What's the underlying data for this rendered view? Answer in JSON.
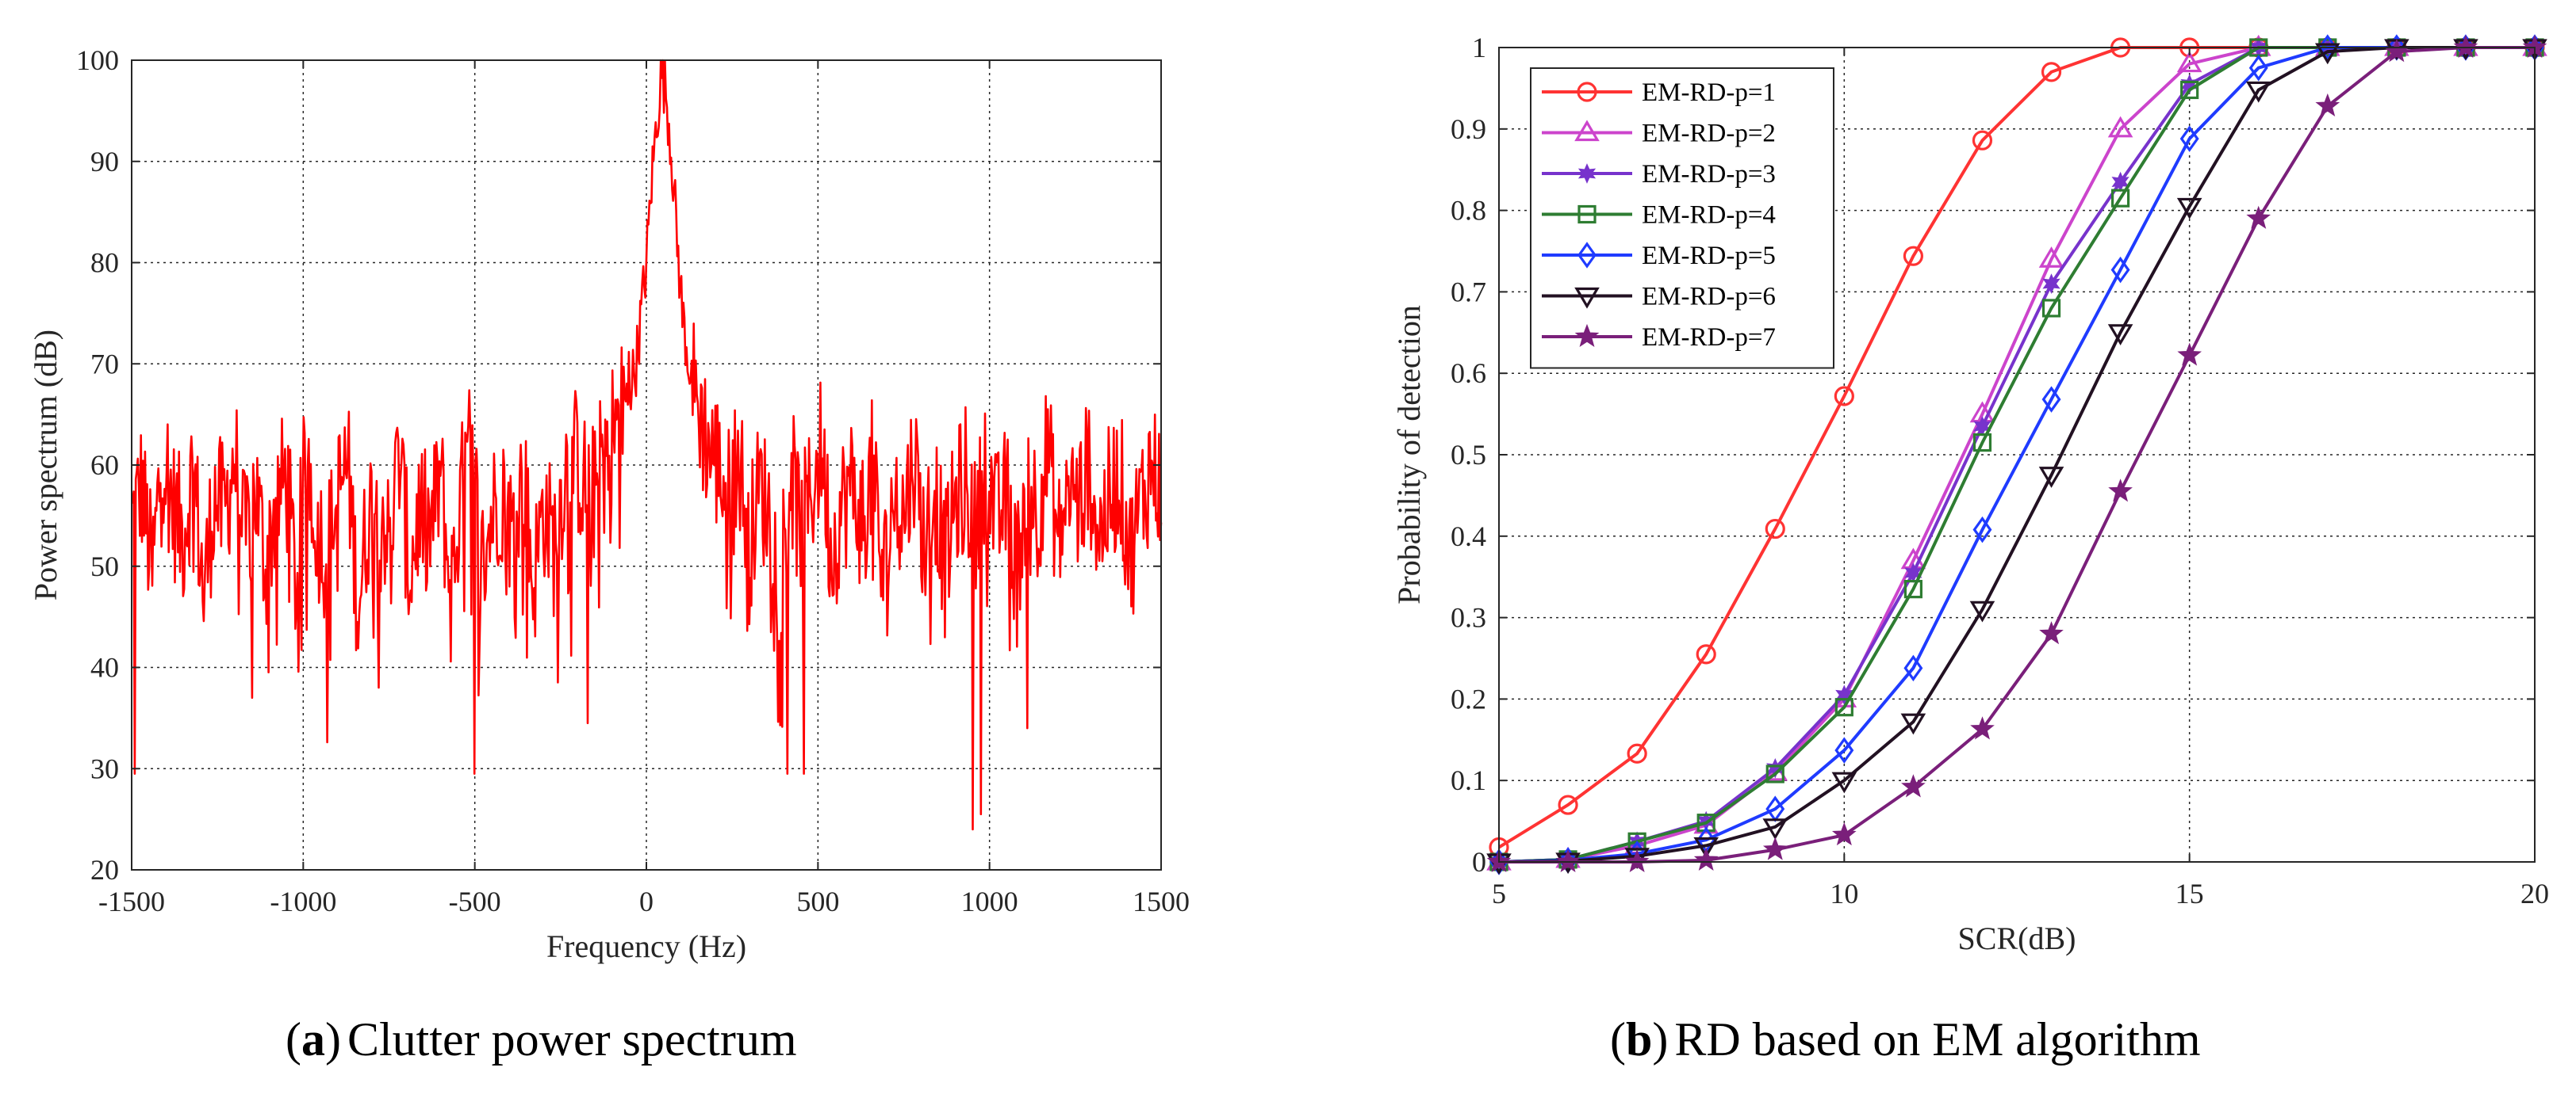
{
  "captions": {
    "a": {
      "label": "a",
      "text": "Clutter power spectrum"
    },
    "b": {
      "label": "b",
      "text": "RD based on EM algorithm"
    }
  },
  "chart_data": [
    {
      "type": "line",
      "title": "",
      "xlabel": "Frequency (Hz)",
      "ylabel": "Power spectrum (dB)",
      "xlim": [
        -1500,
        1500
      ],
      "ylim": [
        20,
        100
      ],
      "xticks": [
        -1500,
        -1000,
        -500,
        0,
        500,
        1000,
        1500
      ],
      "yticks": [
        20,
        30,
        40,
        50,
        60,
        70,
        80,
        90,
        100
      ],
      "grid": true,
      "color": "#ff0000",
      "series": [
        {
          "name": "Clutter power spectrum",
          "x": [
            -1500,
            -1470,
            -1440,
            -1410,
            -1380,
            -1350,
            -1320,
            -1290,
            -1260,
            -1230,
            -1200,
            -1170,
            -1140,
            -1110,
            -1080,
            -1050,
            -1020,
            -990,
            -960,
            -930,
            -900,
            -870,
            -840,
            -810,
            -780,
            -750,
            -720,
            -690,
            -660,
            -630,
            -600,
            -570,
            -540,
            -510,
            -480,
            -450,
            -420,
            -390,
            -360,
            -330,
            -300,
            -270,
            -240,
            -210,
            -180,
            -150,
            -120,
            -90,
            -60,
            -30,
            0,
            15,
            30,
            45,
            60,
            75,
            90,
            105,
            120,
            135,
            150,
            180,
            210,
            240,
            270,
            300,
            330,
            360,
            390,
            420,
            450,
            480,
            510,
            540,
            570,
            600,
            630,
            660,
            690,
            720,
            750,
            780,
            810,
            840,
            870,
            900,
            930,
            960,
            990,
            1020,
            1050,
            1080,
            1110,
            1140,
            1170,
            1200,
            1230,
            1260,
            1290,
            1320,
            1350,
            1380,
            1410,
            1440,
            1470,
            1500
          ],
          "y": [
            54,
            58,
            49,
            62,
            56,
            53,
            60,
            47,
            57,
            55,
            61,
            52,
            58,
            50,
            56,
            59,
            48,
            62,
            54,
            51,
            57,
            60,
            46,
            55,
            58,
            52,
            61,
            49,
            56,
            53,
            59,
            47,
            57,
            62,
            50,
            55,
            58,
            53,
            60,
            48,
            56,
            52,
            59,
            61,
            58,
            57,
            62,
            64,
            66,
            70,
            80,
            88,
            94,
            99,
            96,
            90,
            82,
            75,
            71,
            68,
            66,
            62,
            60,
            57,
            61,
            52,
            58,
            55,
            49,
            60,
            53,
            57,
            62,
            51,
            56,
            58,
            54,
            60,
            48,
            57,
            55,
            61,
            52,
            58,
            50,
            56,
            59,
            53,
            61,
            54,
            57,
            49,
            60,
            55,
            62,
            52,
            58,
            56,
            60,
            53,
            57,
            59,
            51,
            56,
            60,
            58
          ],
          "dips": [
            {
              "x": -1490,
              "y": 29.5
            },
            {
              "x": -1150,
              "y": 37
            },
            {
              "x": -780,
              "y": 38
            },
            {
              "x": -500,
              "y": 29.5
            },
            {
              "x": -170,
              "y": 34.5
            },
            {
              "x": 410,
              "y": 29.5
            },
            {
              "x": 460,
              "y": 29.5
            },
            {
              "x": 950,
              "y": 24
            },
            {
              "x": 975,
              "y": 25.5
            },
            {
              "x": 1110,
              "y": 34
            }
          ]
        }
      ]
    },
    {
      "type": "line",
      "title": "",
      "xlabel": "SCR(dB)",
      "ylabel": "Probability of detection",
      "xlim": [
        5,
        20
      ],
      "ylim": [
        0,
        1
      ],
      "xticks": [
        5,
        10,
        15,
        20
      ],
      "yticks": [
        0,
        0.1,
        0.2,
        0.3,
        0.4,
        0.5,
        0.6,
        0.7,
        0.8,
        0.9,
        1
      ],
      "ytick_labels": [
        "0",
        "0.1",
        "0.2",
        "0.3",
        "0.4",
        "0.5",
        "0.6",
        "0.7",
        "0.8",
        "0.9",
        "1"
      ],
      "grid": true,
      "legend": "top-left",
      "x": [
        5,
        6,
        7,
        8,
        9,
        10,
        11,
        12,
        13,
        14,
        15,
        16,
        17,
        18,
        19,
        20
      ],
      "series": [
        {
          "name": "EM-RD-p=1",
          "color": "#ff3333",
          "marker": "circle",
          "values": [
            0.018,
            0.07,
            0.133,
            0.255,
            0.409,
            0.572,
            0.744,
            0.886,
            0.97,
            1.0,
            1.0,
            1.0,
            1.0,
            1.0,
            1.0,
            1.0
          ]
        },
        {
          "name": "EM-RD-p=2",
          "color": "#cc44cc",
          "marker": "triangle",
          "values": [
            0.0,
            0.003,
            0.02,
            0.045,
            0.11,
            0.2,
            0.37,
            0.55,
            0.74,
            0.9,
            0.98,
            1.0,
            1.0,
            1.0,
            1.0,
            1.0
          ]
        },
        {
          "name": "EM-RD-p=3",
          "color": "#7733cc",
          "marker": "star6",
          "values": [
            0.0,
            0.003,
            0.025,
            0.05,
            0.115,
            0.205,
            0.355,
            0.535,
            0.71,
            0.835,
            0.955,
            1.0,
            1.0,
            1.0,
            1.0,
            1.0
          ]
        },
        {
          "name": "EM-RD-p=4",
          "color": "#2e7d32",
          "marker": "square",
          "values": [
            0.0,
            0.003,
            0.025,
            0.048,
            0.108,
            0.19,
            0.335,
            0.515,
            0.68,
            0.815,
            0.948,
            1.0,
            1.0,
            1.0,
            1.0,
            1.0
          ]
        },
        {
          "name": "EM-RD-p=5",
          "color": "#1f3bff",
          "marker": "diamond",
          "values": [
            0.0,
            0.002,
            0.01,
            0.027,
            0.065,
            0.137,
            0.238,
            0.408,
            0.568,
            0.727,
            0.888,
            0.975,
            1.0,
            1.0,
            1.0,
            1.0
          ]
        },
        {
          "name": "EM-RD-p=6",
          "color": "#221122",
          "marker": "triangle-down",
          "values": [
            0.0,
            0.001,
            0.007,
            0.02,
            0.043,
            0.1,
            0.172,
            0.31,
            0.475,
            0.65,
            0.805,
            0.948,
            0.995,
            1.0,
            1.0,
            1.0
          ]
        },
        {
          "name": "EM-RD-p=7",
          "color": "#7a1f7a",
          "marker": "star",
          "values": [
            0.0,
            0.0,
            0.0,
            0.002,
            0.015,
            0.033,
            0.092,
            0.163,
            0.28,
            0.455,
            0.622,
            0.79,
            0.928,
            0.995,
            1.0,
            1.0
          ]
        }
      ]
    }
  ]
}
